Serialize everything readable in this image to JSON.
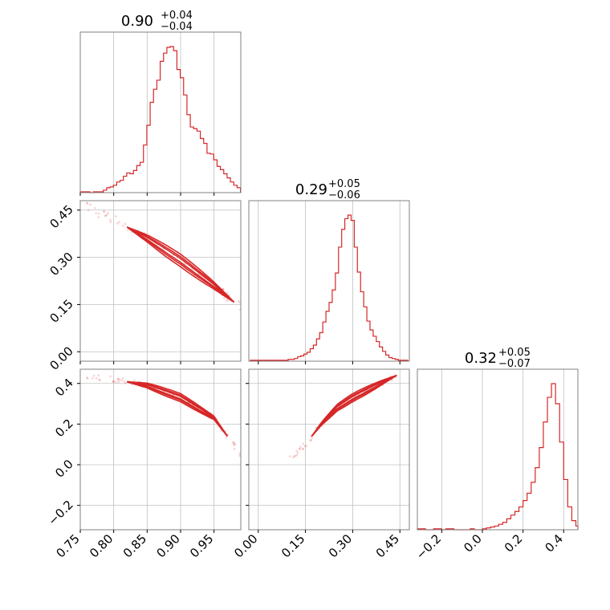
{
  "colors": {
    "series": "#d62728",
    "grid": "#c0c0c0",
    "frame": "#808080"
  },
  "chart_data": {
    "type": "corner",
    "grid": true,
    "titles": [
      {
        "median": "0.90",
        "plus": "+0.04",
        "minus": "−0.04"
      },
      {
        "median": "0.29",
        "plus": "+0.05",
        "minus": "−0.06"
      },
      {
        "median": "0.32",
        "plus": "+0.05",
        "minus": "−0.07"
      }
    ],
    "parameters": [
      {
        "index": 0,
        "range": [
          0.75,
          0.99
        ],
        "ticks": [
          0.75,
          0.8,
          0.85,
          0.9,
          0.95
        ],
        "tick_labels": [
          "0.75",
          "0.80",
          "0.85",
          "0.90",
          "0.95"
        ]
      },
      {
        "index": 1,
        "range": [
          -0.03,
          0.48
        ],
        "ticks": [
          0.0,
          0.15,
          0.3,
          0.45
        ],
        "tick_labels": [
          "0.00",
          "0.15",
          "0.30",
          "0.45"
        ]
      },
      {
        "index": 2,
        "range": [
          -0.32,
          0.47
        ],
        "ticks": [
          -0.2,
          0.0,
          0.2,
          0.4
        ],
        "tick_labels": [
          "−0.2",
          "0.0",
          "0.2",
          "0.4"
        ]
      }
    ],
    "histograms": [
      {
        "param": 0,
        "bin_centers": [
          0.752,
          0.757,
          0.762,
          0.767,
          0.772,
          0.777,
          0.782,
          0.787,
          0.792,
          0.797,
          0.802,
          0.807,
          0.812,
          0.817,
          0.822,
          0.827,
          0.832,
          0.837,
          0.842,
          0.847,
          0.852,
          0.857,
          0.862,
          0.867,
          0.872,
          0.877,
          0.882,
          0.887,
          0.892,
          0.897,
          0.902,
          0.907,
          0.912,
          0.917,
          0.922,
          0.927,
          0.932,
          0.937,
          0.942,
          0.947,
          0.952,
          0.957,
          0.962,
          0.967,
          0.972,
          0.977,
          0.982,
          0.987
        ],
        "counts": [
          1,
          1,
          1,
          0,
          1,
          1,
          1,
          3,
          6,
          7,
          9,
          13,
          15,
          20,
          24,
          23,
          27,
          33,
          37,
          58,
          82,
          110,
          126,
          137,
          160,
          170,
          177,
          178,
          173,
          150,
          140,
          119,
          95,
          80,
          78,
          75,
          66,
          60,
          48,
          47,
          40,
          32,
          28,
          23,
          18,
          13,
          9,
          6
        ]
      },
      {
        "param": 1,
        "bin_centers": [
          -0.02,
          -0.01,
          0.0,
          0.01,
          0.02,
          0.03,
          0.04,
          0.05,
          0.06,
          0.07,
          0.08,
          0.09,
          0.1,
          0.11,
          0.12,
          0.13,
          0.14,
          0.15,
          0.16,
          0.17,
          0.18,
          0.19,
          0.2,
          0.21,
          0.22,
          0.23,
          0.24,
          0.25,
          0.26,
          0.27,
          0.28,
          0.29,
          0.3,
          0.31,
          0.32,
          0.33,
          0.34,
          0.35,
          0.36,
          0.37,
          0.38,
          0.39,
          0.4,
          0.41,
          0.42,
          0.43,
          0.44,
          0.45,
          0.46,
          0.47
        ],
        "counts": [
          1,
          1,
          1,
          1,
          1,
          1,
          1,
          1,
          1,
          1,
          1,
          1,
          2,
          2,
          3,
          5,
          6,
          8,
          10,
          14,
          18,
          25,
          32,
          44,
          56,
          66,
          80,
          99,
          128,
          148,
          160,
          164,
          158,
          128,
          100,
          78,
          61,
          45,
          35,
          28,
          22,
          16,
          11,
          7,
          4,
          3,
          2,
          1,
          1,
          1
        ]
      },
      {
        "param": 2,
        "bin_centers": [
          -0.31,
          -0.29,
          -0.27,
          -0.25,
          -0.23,
          -0.21,
          -0.19,
          -0.17,
          -0.15,
          -0.13,
          -0.11,
          -0.09,
          -0.07,
          -0.05,
          -0.03,
          -0.01,
          0.01,
          0.03,
          0.05,
          0.07,
          0.09,
          0.11,
          0.13,
          0.15,
          0.17,
          0.19,
          0.21,
          0.23,
          0.25,
          0.27,
          0.29,
          0.31,
          0.33,
          0.35,
          0.37,
          0.39,
          0.41,
          0.43,
          0.45,
          0.47
        ],
        "counts": [
          1,
          1,
          0,
          0,
          1,
          1,
          0,
          1,
          1,
          0,
          0,
          0,
          0,
          1,
          0,
          0,
          1,
          2,
          3,
          4,
          6,
          8,
          12,
          16,
          20,
          25,
          32,
          40,
          52,
          68,
          90,
          118,
          145,
          160,
          138,
          96,
          55,
          25,
          10,
          4
        ]
      }
    ],
    "pair_plots": [
      {
        "x_param": 0,
        "y_param": 1,
        "trend": [
          [
            0.76,
            0.46
          ],
          [
            0.8,
            0.42
          ],
          [
            0.85,
            0.36
          ],
          [
            0.9,
            0.29
          ],
          [
            0.95,
            0.21
          ],
          [
            0.99,
            0.14
          ]
        ],
        "contour_x_range": [
          0.82,
          0.98
        ]
      },
      {
        "x_param": 0,
        "y_param": 2,
        "trend": [
          [
            0.76,
            0.44
          ],
          [
            0.8,
            0.42
          ],
          [
            0.85,
            0.39
          ],
          [
            0.9,
            0.33
          ],
          [
            0.95,
            0.23
          ],
          [
            0.99,
            0.05
          ]
        ],
        "contour_x_range": [
          0.82,
          0.97
        ]
      },
      {
        "x_param": 1,
        "y_param": 2,
        "trend": [
          [
            0.1,
            0.03
          ],
          [
            0.15,
            0.1
          ],
          [
            0.2,
            0.2
          ],
          [
            0.25,
            0.28
          ],
          [
            0.3,
            0.33
          ],
          [
            0.35,
            0.37
          ],
          [
            0.4,
            0.41
          ],
          [
            0.44,
            0.44
          ]
        ],
        "contour_x_range": [
          0.17,
          0.44
        ]
      }
    ]
  }
}
